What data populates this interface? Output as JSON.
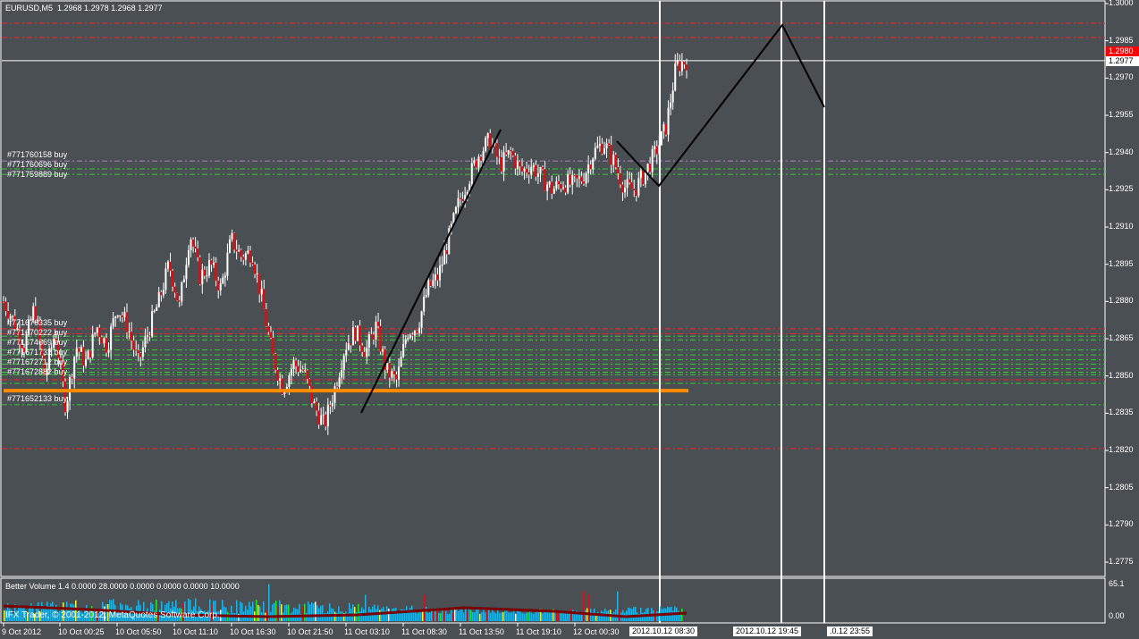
{
  "header": {
    "symbol_timeframe": "EURUSD,M5",
    "ohlc": "1.2968 1.2978 1.2968 1.2977"
  },
  "indicator": {
    "label": "Better Volume 1.4 0.0000 28.0000 0.0000 0.0000 0.0000 10.0000",
    "scale_top": "65.1",
    "scale_bottom": "0.00"
  },
  "copyright": "IFX Trader, © 2001-2012, MetaQuotes Software Corp.",
  "price_axis": {
    "ticks": [
      "1.3000",
      "1.2985",
      "1.2970",
      "1.2955",
      "1.2940",
      "1.2925",
      "1.2910",
      "1.2895",
      "1.2880",
      "1.2865",
      "1.2850",
      "1.2835",
      "1.2820",
      "1.2805",
      "1.2790",
      "1.2775"
    ],
    "ask_label": "1.2980",
    "bid_label": "1.2977",
    "ask_color": "#ff0000"
  },
  "time_axis": {
    "ticks": [
      "9 Oct 2012",
      "10 Oct 00:25",
      "10 Oct 05:50",
      "10 Oct 11:10",
      "10 Oct 16:30",
      "10 Oct 21:50",
      "11 Oct 03:10",
      "11 Oct 08:30",
      "11 Oct 13:50",
      "11 Oct 19:10",
      "12 Oct 00:30"
    ],
    "marker_labels": [
      "2012.10.12 08:30",
      "2012.10.12 19:45",
      ".0.12 23:55"
    ]
  },
  "orders": [
    {
      "label": "#771760158 buy",
      "price": 1.29366
    },
    {
      "label": "#771760696 buy",
      "price": 1.29334
    },
    {
      "label": "#771759889 buy",
      "price": 1.29312
    },
    {
      "label": "#771676335 buy",
      "price": 1.2869
    },
    {
      "label": "#771670222 buy",
      "price": 1.28668
    },
    {
      "label": "#771674669 buy",
      "price": 1.2862
    },
    {
      "label": "#771671732 buy",
      "price": 1.28592
    },
    {
      "label": "#771672712 buy",
      "price": 1.28548
    },
    {
      "label": "#771672882 buy",
      "price": 1.28505
    },
    {
      "label": "#771652133 buy",
      "price": 1.28384
    }
  ],
  "levels": {
    "red": [
      1.29921,
      1.29863,
      1.2869,
      1.2867,
      1.28485,
      1.28208
    ],
    "green": [
      1.29334,
      1.29312,
      1.2866,
      1.28645,
      1.28605,
      1.28585,
      1.28565,
      1.28548,
      1.2853,
      1.28515,
      1.28505,
      1.2847,
      1.28384
    ],
    "orange": 1.28441,
    "current": 1.2977
  },
  "colors": {
    "background": "#4a4f53",
    "bull": "#ffffff",
    "bear": "#ff0000",
    "volume": "#00bfff",
    "volume_ma": "#7a0000",
    "orange": "#ff8c00",
    "green": "#32cd32"
  },
  "price_path": [
    1.288,
    1.2872,
    1.2862,
    1.2878,
    1.285,
    1.2868,
    1.2838,
    1.2862,
    1.2855,
    1.287,
    1.2862,
    1.2878,
    1.287,
    1.2855,
    1.2868,
    1.288,
    1.2895,
    1.2878,
    1.2908,
    1.289,
    1.2895,
    1.2885,
    1.2905,
    1.2898,
    1.29,
    1.288,
    1.2858,
    1.2845,
    1.2855,
    1.2852,
    1.2838,
    1.283,
    1.2845,
    1.2862,
    1.2868,
    1.286,
    1.287,
    1.2852,
    1.2848,
    1.2868,
    1.287,
    1.2885,
    1.289,
    1.2905,
    1.292,
    1.293,
    1.294,
    1.2945,
    1.2935,
    1.294,
    1.2932,
    1.2935,
    1.293,
    1.2925,
    1.2928,
    1.2927,
    1.293,
    1.294,
    1.2944,
    1.2936,
    1.2926,
    1.2925,
    1.2932,
    1.294,
    1.295,
    1.2975,
    1.2977
  ]
}
